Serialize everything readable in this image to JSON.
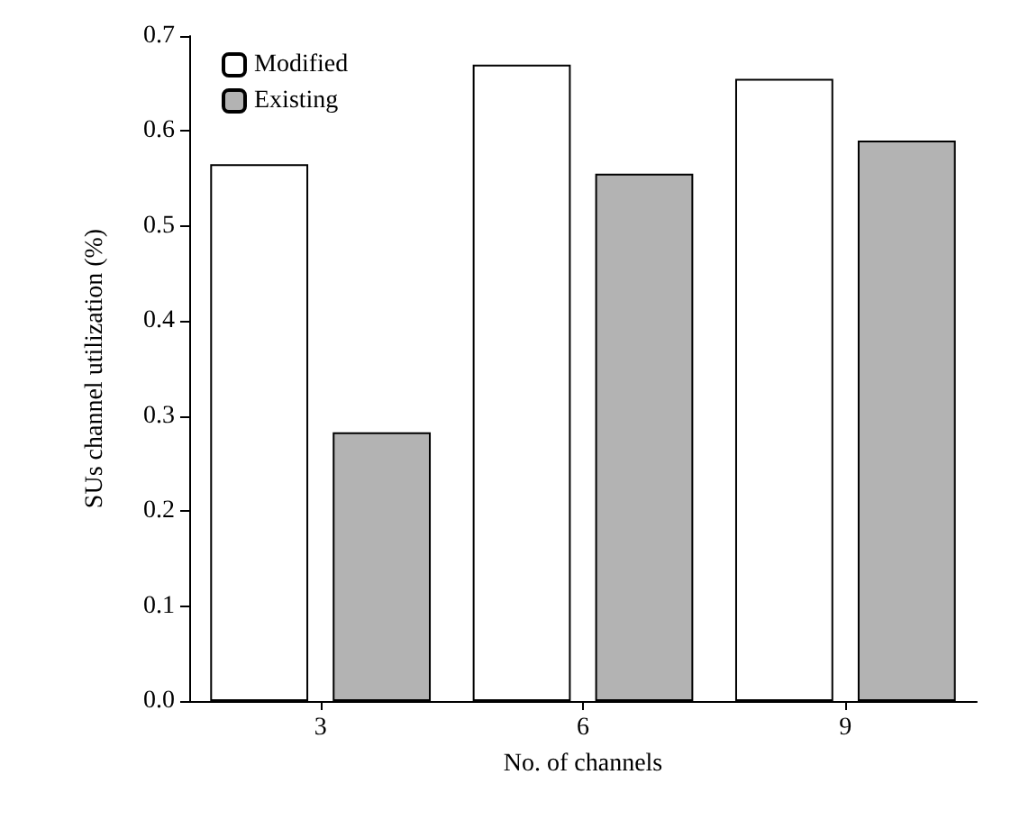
{
  "chart_data": {
    "type": "bar",
    "xlabel": "No. of channels",
    "ylabel": "SUs channel utilization (%)",
    "categories": [
      "3",
      "6",
      "9"
    ],
    "series": [
      {
        "name": "Modified",
        "color": "#ffffff",
        "values": [
          0.565,
          0.67,
          0.655
        ]
      },
      {
        "name": "Existing",
        "color": "#b3b3b3",
        "values": [
          0.283,
          0.555,
          0.59
        ]
      }
    ],
    "ylim": [
      0,
      0.7
    ],
    "yticks": [
      {
        "value": 0,
        "label": "0.0"
      },
      {
        "value": 0.1,
        "label": "0.1"
      },
      {
        "value": 0.2,
        "label": "0.2"
      },
      {
        "value": 0.3,
        "label": "0.3"
      },
      {
        "value": 0.4,
        "label": "0.4"
      },
      {
        "value": 0.5,
        "label": "0.5"
      },
      {
        "value": 0.6,
        "label": "0.6"
      },
      {
        "value": 0.7,
        "label": "0.7"
      }
    ],
    "grid": false,
    "legend": "top left"
  }
}
